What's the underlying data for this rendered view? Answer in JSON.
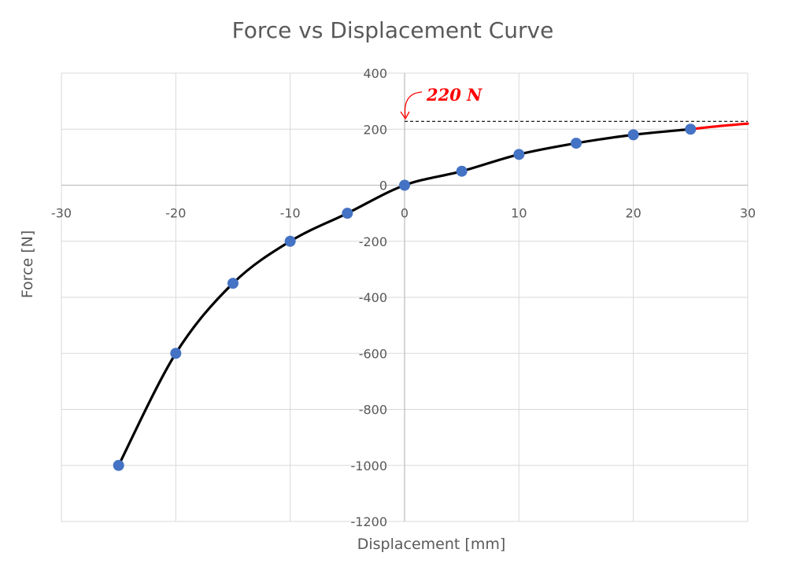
{
  "chart_data": {
    "type": "scatter",
    "title": "Force vs Displacement Curve",
    "xlabel": "Displacement [mm]",
    "ylabel": "Force [N]",
    "xlim": [
      -30,
      30
    ],
    "ylim": [
      -1200,
      400
    ],
    "x_ticks": [
      -30,
      -20,
      -10,
      0,
      10,
      20,
      30
    ],
    "y_ticks": [
      400,
      200,
      0,
      -200,
      -400,
      -600,
      -800,
      -1000,
      -1200
    ],
    "grid": true,
    "series": [
      {
        "x": [
          -25,
          -20,
          -15,
          -10,
          -5,
          0,
          5,
          10,
          15,
          20,
          25
        ],
        "y": [
          -1000,
          -600,
          -350,
          -200,
          -100,
          0,
          50,
          110,
          150,
          180,
          200
        ],
        "marker_color": "#4472C4",
        "line_color": "#000000"
      }
    ],
    "extrapolation": {
      "x": [
        25,
        27.5,
        30
      ],
      "y": [
        200,
        211,
        220
      ],
      "color": "#FF0000"
    },
    "reference_line": {
      "y": 228,
      "x_start": 0,
      "x_end": 30,
      "style": "dashed",
      "color": "#000000"
    },
    "annotation": {
      "text": "220 N",
      "color": "#FF0000"
    }
  }
}
